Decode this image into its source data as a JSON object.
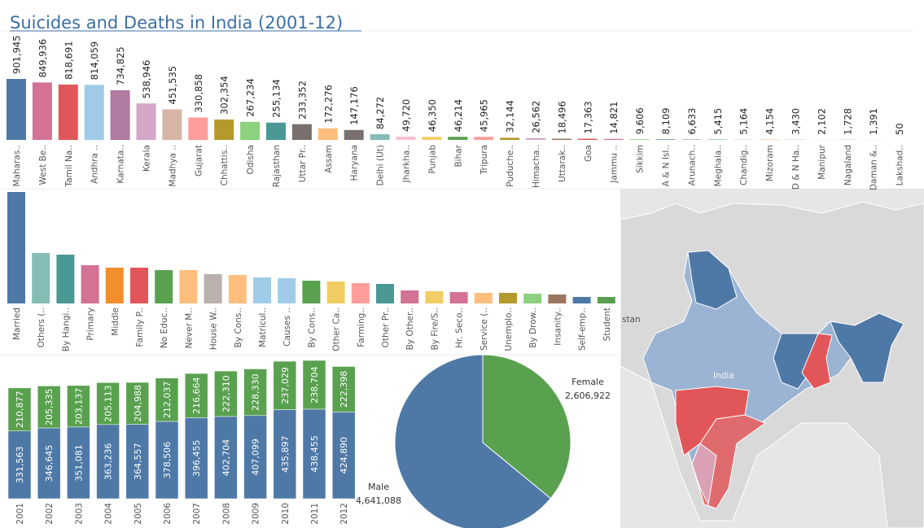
{
  "title": "Suicides and Deaths in India (2001-12)",
  "map": {
    "labels": [
      "stan",
      "India"
    ]
  },
  "chart_data": [
    {
      "type": "bar",
      "categories": [
        "Maharas..",
        "West Be..",
        "Tamil Na..",
        "Andhra ..",
        "Karnata..",
        "Kerala",
        "Madhya ..",
        "Gujarat",
        "Chhattis..",
        "Odisha",
        "Rajasthan",
        "Uttar Pr..",
        "Assam",
        "Haryana",
        "Delhi (Ut)",
        "Jharkha..",
        "Punjab",
        "Bihar",
        "Tripura",
        "Puduche..",
        "Himacha..",
        "Uttarak..",
        "Goa",
        "Jammu ..",
        "Sikkim",
        "A & N Isl..",
        "Arunach..",
        "Meghala..",
        "Chandig..",
        "Mizoram",
        "D & N Ha..",
        "Manipur",
        "Nagaland",
        "Daman &..",
        "Lakshad.."
      ],
      "values": [
        901945,
        849936,
        818691,
        814059,
        734825,
        538946,
        451535,
        330858,
        302354,
        267234,
        255134,
        233352,
        172276,
        147176,
        84272,
        49720,
        46350,
        46214,
        45965,
        32144,
        26562,
        18496,
        17363,
        14821,
        9606,
        8109,
        6633,
        5415,
        5164,
        4154,
        3430,
        2102,
        1728,
        1391,
        50
      ],
      "value_labels": [
        "901,945",
        "849,936",
        "818,691",
        "814,059",
        "734,825",
        "538,946",
        "451,535",
        "330,858",
        "302,354",
        "267,234",
        "255,134",
        "233,352",
        "172,276",
        "147,176",
        "84,272",
        "49,720",
        "46,350",
        "46,214",
        "45,965",
        "32,144",
        "26,562",
        "18,496",
        "17,363",
        "14,821",
        "9,606",
        "8,109",
        "6,633",
        "5,415",
        "5,164",
        "4,154",
        "3,430",
        "2,102",
        "1,728",
        "1,391",
        "50"
      ],
      "colors": [
        "#4e79a7",
        "#d37295",
        "#e15759",
        "#a0cbe8",
        "#b07aa1",
        "#d4a6c8",
        "#d7b5a6",
        "#ff9d9a",
        "#b6992d",
        "#8cd17d",
        "#499894",
        "#79706e",
        "#ffbe7d",
        "#79706e",
        "#86bcb6",
        "#fabfd2",
        "#f1ce63",
        "#59a14f",
        "#ff9d9a",
        "#b6992d",
        "#d4a6c8",
        "#9d7660",
        "#e15759",
        "#d37295",
        "#8cd17d",
        "#4e79a7",
        "#b07aa1",
        "#499894",
        "#a0cbe8",
        "#f28e2b",
        "#86bcb6",
        "#d7b5a6",
        "#e15759",
        "#bab0ac",
        "#f28e2b"
      ]
    },
    {
      "type": "bar",
      "categories": [
        "Married",
        "Others (..",
        "By Hangi..",
        "Primary",
        "Middle",
        "Family P..",
        "No Educ..",
        "Never M..",
        "House W..",
        "By Cons..",
        "Matricul..",
        "Causes ..",
        "By Cons..",
        "Other Ca..",
        "Farming..",
        "Other Pr..",
        "By Other..",
        "By Fire/S..",
        "Hr. Seco..",
        "Service (..",
        "Unemplo..",
        "By Drow..",
        "Insanity..",
        "Self-emp..",
        "Student"
      ],
      "values": [
        137,
        62,
        60,
        47,
        44,
        44,
        41,
        41,
        36,
        35,
        32,
        31,
        28,
        27,
        25,
        24,
        16,
        15,
        14,
        13,
        13,
        12,
        11,
        8,
        8
      ],
      "colors": [
        "#4e79a7",
        "#86bcb6",
        "#499894",
        "#d37295",
        "#f28e2b",
        "#e15759",
        "#59a14f",
        "#ffbe7d",
        "#bab0ac",
        "#ffbe7d",
        "#a0cbe8",
        "#a0cbe8",
        "#59a14f",
        "#f1ce63",
        "#ff9d9a",
        "#499894",
        "#d37295",
        "#f1ce63",
        "#d37295",
        "#ffbe7d",
        "#b6992d",
        "#8cd17d",
        "#9d7660",
        "#4e79a7",
        "#59a14f"
      ]
    },
    {
      "type": "stacked_bar",
      "categories": [
        "2001",
        "2002",
        "2003",
        "2004",
        "2005",
        "2006",
        "2007",
        "2008",
        "2009",
        "2010",
        "2011",
        "2012"
      ],
      "series": [
        {
          "color": "#4e79a7",
          "values": [
            331563,
            346645,
            351081,
            363236,
            364557,
            378506,
            396455,
            402704,
            407099,
            435897,
            438455,
            424890
          ],
          "value_labels": [
            "331,563",
            "346,645",
            "351,081",
            "363,236",
            "364,557",
            "378,506",
            "396,455",
            "402,704",
            "407,099",
            "435,897",
            "438,455",
            "424,890"
          ]
        },
        {
          "color": "#59a14f",
          "values": [
            210877,
            205335,
            203137,
            205113,
            204988,
            212037,
            216664,
            222310,
            228330,
            237029,
            238704,
            222398
          ],
          "value_labels": [
            "210,877",
            "205,335",
            "203,137",
            "205,113",
            "204,988",
            "212,037",
            "216,664",
            "222,310",
            "228,330",
            "237,029",
            "238,704",
            "222,398"
          ]
        }
      ]
    },
    {
      "type": "pie",
      "categories": [
        "Female",
        "Male"
      ],
      "values": [
        2606922,
        4641088
      ],
      "value_labels": [
        "2,606,922",
        "4,641,088"
      ],
      "colors": [
        "#59a14f",
        "#4e79a7"
      ]
    }
  ]
}
